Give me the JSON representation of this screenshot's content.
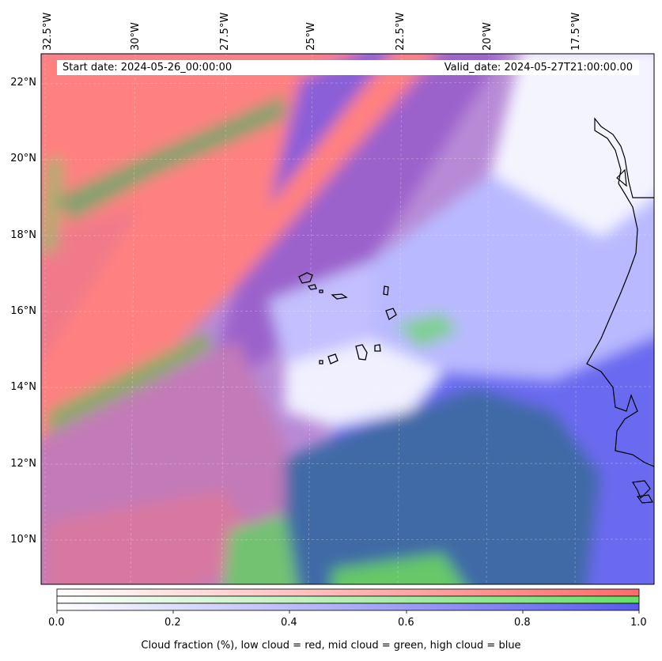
{
  "map": {
    "start_date": "Start date: 2024-05-26_00:00:00",
    "valid_date": "Valid_date: 2024-05-27T21:00:00.00",
    "longitude_labels": [
      "32.5°W",
      "30°W",
      "27.5°W",
      "25°W",
      "22.5°W",
      "20°W",
      "17.5°W"
    ],
    "latitude_labels": [
      "22°N",
      "20°N",
      "18°N",
      "16°N",
      "14°N",
      "12°N",
      "10°N"
    ],
    "extent": {
      "lon_west": -32.7,
      "lon_east": -15.4,
      "lat_south": 8.9,
      "lat_north": 22.8
    },
    "gridlines": true,
    "coastline_color": "#000000"
  },
  "colorbar": {
    "tick_labels": [
      "0.0",
      "0.2",
      "0.4",
      "0.6",
      "0.8",
      "1.0"
    ],
    "caption": "Cloud fraction (%), low cloud = red, mid cloud = green, high cloud = blue",
    "low_cloud_color": "#ff6b6b",
    "mid_cloud_color": "#66e066",
    "high_cloud_color": "#5a5af0"
  },
  "colors": {
    "low_cloud": "#ff7f7f",
    "mid_cloud": "#6fc96f",
    "high_cloud": "#6f6ff2",
    "clear": "#ffffff",
    "overlap_purple": "#9a62cc",
    "overlap_teal": "#3f6da6"
  }
}
